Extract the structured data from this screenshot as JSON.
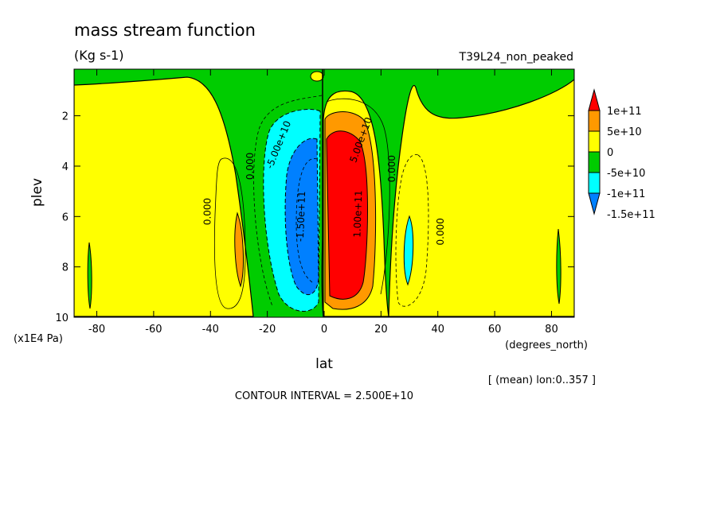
{
  "chart_data": {
    "type": "heatmap",
    "title": "mass stream function",
    "units": "(Kg s-1)",
    "run_label": "T39L24_non_peaked",
    "xlabel": "lat",
    "ylabel": "plev",
    "x_units": "(degrees_north)",
    "y_units": "(x1E4 Pa)",
    "xlim": [
      -88,
      88
    ],
    "ylim": [
      10,
      0.15
    ],
    "x_ticks": [
      -80,
      -60,
      -40,
      -20,
      0,
      20,
      40,
      60,
      80
    ],
    "y_ticks": [
      2,
      4,
      6,
      8,
      10
    ],
    "mean_note": "[ (mean) lon:0..357 ]",
    "contour_interval_text": "CONTOUR INTERVAL = 2.500E+10",
    "colorbar": {
      "levels": [
        "1e+11",
        "5e+10",
        "0",
        "-5e+10",
        "-1e+11",
        "-1.5e+11"
      ],
      "bands": [
        {
          "range": "> 1e+11",
          "color": "#ff0000"
        },
        {
          "range": "5e+10 to 1e+11",
          "color": "#ff9900"
        },
        {
          "range": "0 to 5e+10",
          "color": "#ffff00"
        },
        {
          "range": "-5e+10 to 0",
          "color": "#00cc00"
        },
        {
          "range": "-1e+11 to -5e+10",
          "color": "#00ffff"
        },
        {
          "range": "< -1e+11",
          "color": "#0080ff"
        }
      ]
    },
    "cells": [
      {
        "lat_center": -7,
        "plev_center": 5.8,
        "value_sign": "negative",
        "peak_band": "< -1e+11",
        "fill": "#0080ff"
      },
      {
        "lat_center": 9,
        "plev_center": 5.9,
        "value_sign": "positive",
        "peak_band": "> 1e+11",
        "fill": "#ff0000"
      },
      {
        "lat_center": -30,
        "plev_center": 7.5,
        "value_sign": "positive",
        "peak_band": "5e+10 to 1e+11",
        "fill": "#ff9900"
      },
      {
        "lat_center": 31,
        "plev_center": 7.2,
        "value_sign": "negative",
        "peak_band": "-1e+11 to -5e+10",
        "fill": "#00ffff"
      }
    ],
    "contour_labels": [
      {
        "text": "-5.00e+10",
        "lat": -15,
        "plev": 3.2,
        "angle": -68
      },
      {
        "text": "-1.50e+11",
        "lat": -7,
        "plev": 6.0,
        "angle": -88
      },
      {
        "text": "5.00e+10",
        "lat": 14,
        "plev": 3.0,
        "angle": -70
      },
      {
        "text": "1.00e+11",
        "lat": 13,
        "plev": 5.9,
        "angle": -88
      },
      {
        "text": "0.000",
        "lat": -40,
        "plev": 5.8,
        "angle": -90
      },
      {
        "text": "0.000",
        "lat": -25,
        "plev": 4.0,
        "angle": -90
      },
      {
        "text": "0.000",
        "lat": 25,
        "plev": 4.1,
        "angle": -90
      },
      {
        "text": "0.000",
        "lat": 42,
        "plev": 6.6,
        "angle": -90
      }
    ]
  }
}
